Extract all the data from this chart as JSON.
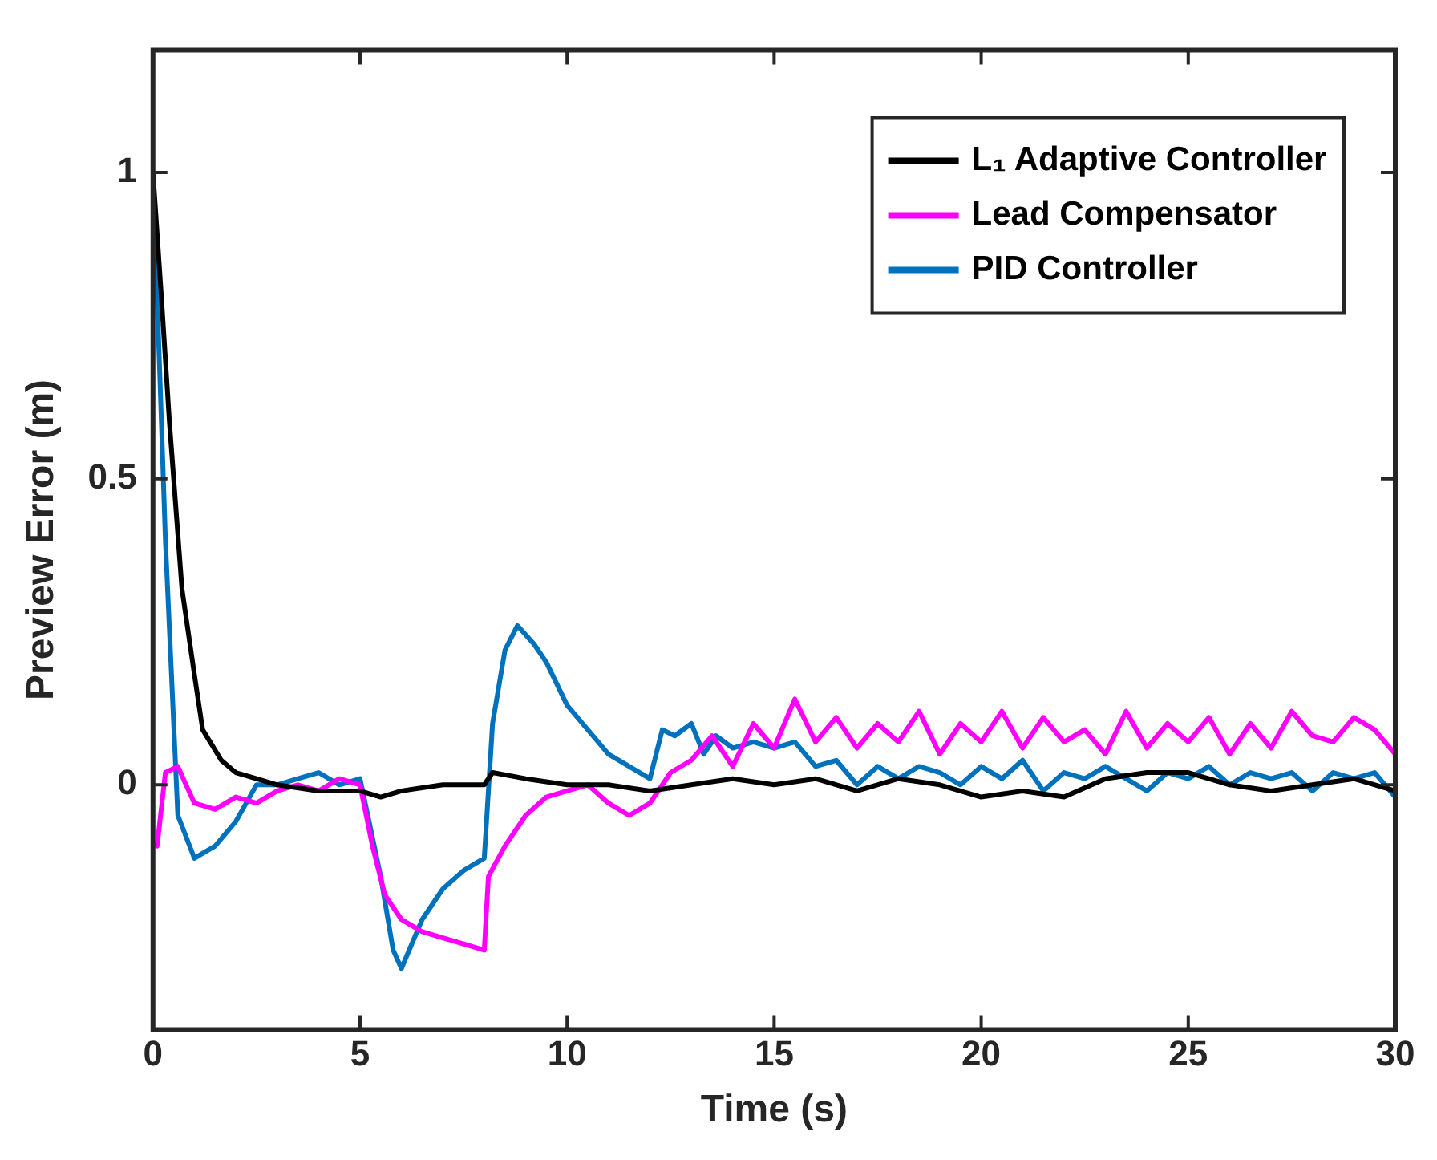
{
  "chart_data": {
    "type": "line",
    "xlabel": "Time (s)",
    "ylabel": "Preview Error (m)",
    "xlim": [
      0,
      30
    ],
    "xticks": [
      0,
      5,
      10,
      15,
      20,
      25,
      30
    ],
    "ylim": [
      -0.4,
      1.2
    ],
    "yticks": [
      0,
      0.5,
      1
    ],
    "legend": "top right",
    "line_style": "solid",
    "marker": "none",
    "series": [
      {
        "name": "L₁ Adaptive Controller",
        "color": "#000000",
        "x": [
          0,
          0.2,
          0.4,
          0.7,
          1,
          1.2,
          1.65,
          2,
          2.5,
          3,
          4,
          5,
          5.5,
          6,
          7,
          8,
          8.2,
          9,
          10,
          11,
          12,
          13,
          14,
          15,
          16,
          17,
          18,
          19,
          20,
          21,
          22,
          23,
          24,
          25,
          26,
          27,
          28,
          29,
          30
        ],
        "values": [
          1,
          0.8,
          0.59,
          0.32,
          0.18,
          0.09,
          0.04,
          0.02,
          0.01,
          0,
          -0.01,
          -0.01,
          -0.02,
          -0.01,
          0,
          0,
          0.02,
          0.01,
          0,
          0,
          -0.01,
          0,
          0.01,
          0,
          0.01,
          -0.01,
          0.01,
          0,
          -0.02,
          -0.01,
          -0.02,
          0.01,
          0.02,
          0.02,
          0,
          -0.01,
          0,
          0.01,
          -0.01
        ]
      },
      {
        "name": "Lead Compensator",
        "color": "#ff00ff",
        "x": [
          0.1,
          0.3,
          0.6,
          1,
          1.5,
          2,
          2.5,
          3,
          3.5,
          4,
          4.5,
          5,
          5.3,
          5.6,
          6,
          6.5,
          7,
          7.5,
          8,
          8.1,
          8.5,
          9,
          9.5,
          10,
          10.5,
          11,
          11.5,
          12,
          12.5,
          13,
          13.5,
          14,
          14.5,
          15,
          15.5,
          16,
          16.5,
          17,
          17.5,
          18,
          18.5,
          19,
          19.5,
          20,
          20.5,
          21,
          21.5,
          22,
          22.5,
          23,
          23.5,
          24,
          24.5,
          25,
          25.5,
          26,
          26.5,
          27,
          27.5,
          28,
          28.5,
          29,
          29.5,
          30
        ],
        "values": [
          -0.1,
          0.02,
          0.03,
          -0.03,
          -0.04,
          -0.02,
          -0.03,
          -0.01,
          0,
          -0.01,
          0.01,
          0,
          -0.1,
          -0.18,
          -0.22,
          -0.24,
          -0.25,
          -0.26,
          -0.27,
          -0.15,
          -0.1,
          -0.05,
          -0.02,
          -0.01,
          0,
          -0.03,
          -0.05,
          -0.03,
          0.02,
          0.04,
          0.08,
          0.03,
          0.1,
          0.06,
          0.14,
          0.07,
          0.11,
          0.06,
          0.1,
          0.07,
          0.12,
          0.05,
          0.1,
          0.07,
          0.12,
          0.06,
          0.11,
          0.07,
          0.09,
          0.05,
          0.12,
          0.06,
          0.1,
          0.07,
          0.11,
          0.05,
          0.1,
          0.06,
          0.12,
          0.08,
          0.07,
          0.11,
          0.09,
          0.05
        ]
      },
      {
        "name": "PID Controller",
        "color": "#0072bd",
        "x": [
          0,
          0.3,
          0.6,
          1,
          1.5,
          2,
          2.5,
          3,
          3.5,
          4,
          4.5,
          5,
          5.5,
          5.8,
          6,
          6.5,
          7,
          7.5,
          8,
          8.2,
          8.5,
          8.8,
          9.2,
          9.5,
          10,
          10.5,
          11,
          11.5,
          12,
          12.3,
          12.6,
          13,
          13.3,
          13.6,
          14,
          14.5,
          15,
          15.5,
          16,
          16.5,
          17,
          17.5,
          18,
          18.5,
          19,
          19.5,
          20,
          20.5,
          21,
          21.5,
          22,
          22.5,
          23,
          23.5,
          24,
          24.5,
          25,
          25.5,
          26,
          26.5,
          27,
          27.5,
          28,
          28.5,
          29,
          29.5,
          30
        ],
        "values": [
          1,
          0.4,
          -0.05,
          -0.12,
          -0.1,
          -0.06,
          0,
          0,
          0.01,
          0.02,
          0,
          0.01,
          -0.15,
          -0.27,
          -0.3,
          -0.22,
          -0.17,
          -0.14,
          -0.12,
          0.1,
          0.22,
          0.26,
          0.23,
          0.2,
          0.13,
          0.09,
          0.05,
          0.03,
          0.01,
          0.09,
          0.08,
          0.1,
          0.05,
          0.08,
          0.06,
          0.07,
          0.06,
          0.07,
          0.03,
          0.04,
          0,
          0.03,
          0.01,
          0.03,
          0.02,
          0,
          0.03,
          0.01,
          0.04,
          -0.01,
          0.02,
          0.01,
          0.03,
          0.01,
          -0.01,
          0.02,
          0.01,
          0.03,
          0,
          0.02,
          0.01,
          0.02,
          -0.01,
          0.02,
          0.01,
          0.02,
          -0.02
        ]
      }
    ]
  }
}
